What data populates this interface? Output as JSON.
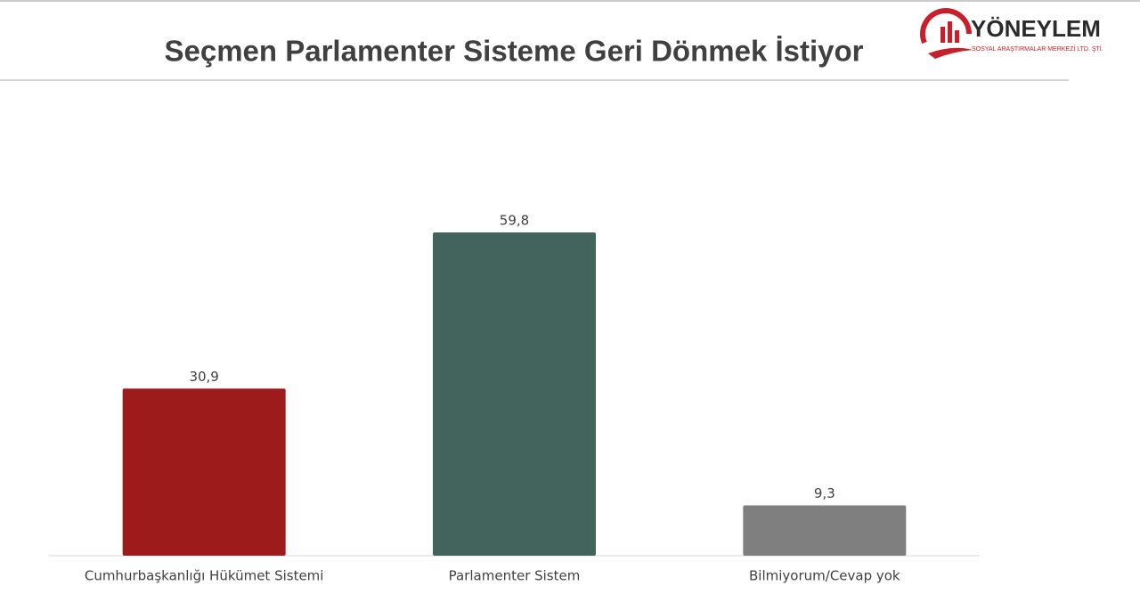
{
  "chart_data": {
    "type": "bar",
    "title": "Seçmen Parlamenter Sisteme Geri Dönmek İstiyor",
    "categories": [
      "Cumhurbaşkanlığı Hükümet Sistemi",
      "Parlamenter Sistem",
      "Bilmiyorum/Cevap yok"
    ],
    "values": [
      30.9,
      59.8,
      9.3
    ],
    "value_labels": [
      "30,9",
      "59,8",
      "9,3"
    ],
    "colors": [
      "#9e1b1b",
      "#43645c",
      "#7f7f7f"
    ]
  },
  "logo": {
    "name": "YÖNEYLEM",
    "subtitle": "SOSYAL ARAŞTIRMALAR MERKEZİ LTD. ŞTİ."
  }
}
